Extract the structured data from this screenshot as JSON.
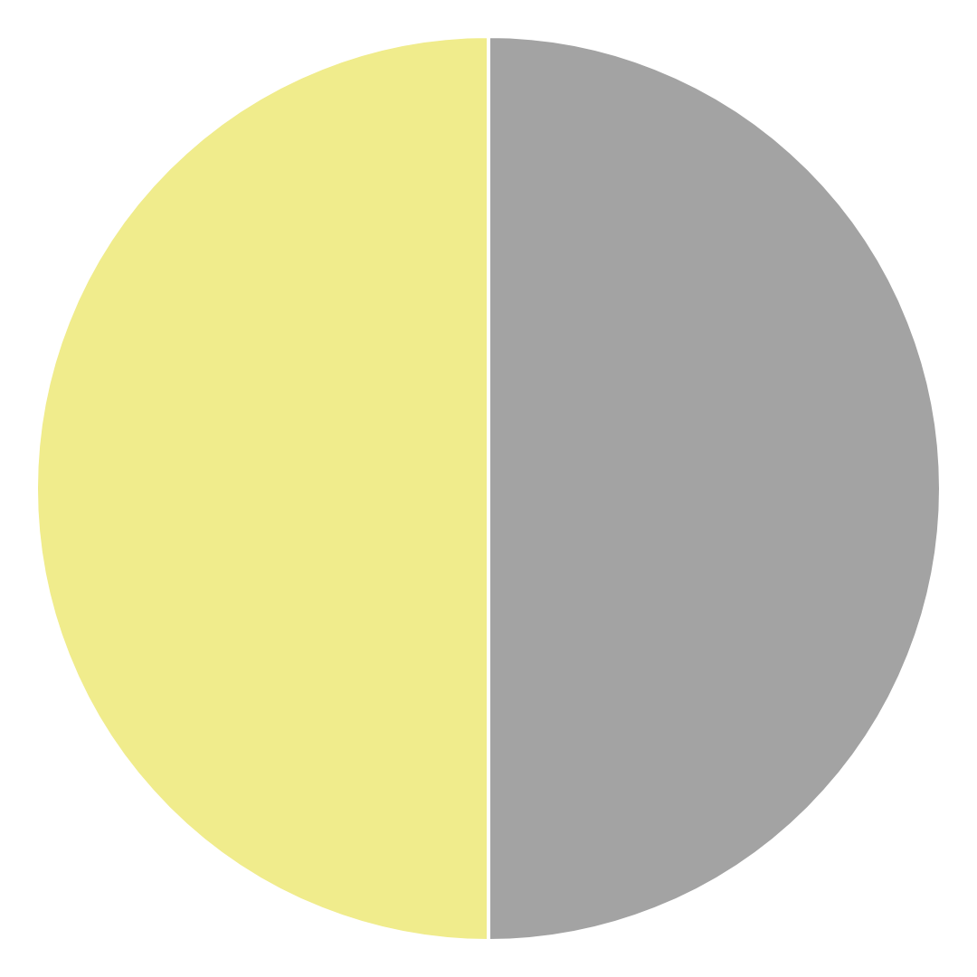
{
  "chart_data": {
    "type": "pie",
    "values": [
      50,
      50
    ],
    "colors": [
      "#a3a3a3",
      "#f0ec8c"
    ]
  }
}
